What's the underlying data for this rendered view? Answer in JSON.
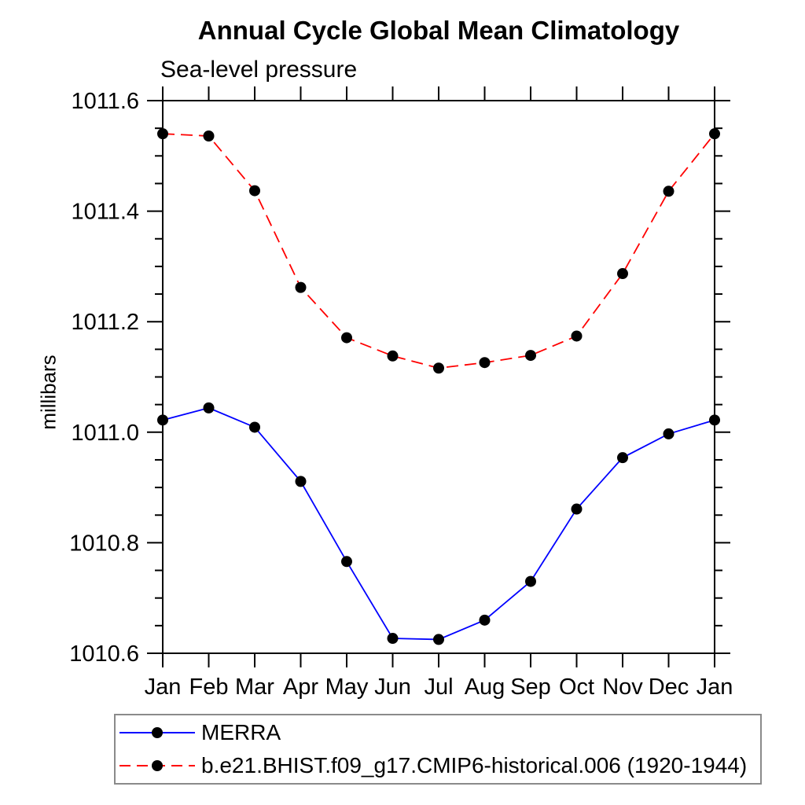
{
  "chart_data": {
    "type": "line",
    "title": "Annual Cycle Global Mean Climatology",
    "subtitle": "Sea-level pressure",
    "ylabel": "millibars",
    "categories": [
      "Jan",
      "Feb",
      "Mar",
      "Apr",
      "May",
      "Jun",
      "Jul",
      "Aug",
      "Sep",
      "Oct",
      "Nov",
      "Dec",
      "Jan"
    ],
    "ylim": [
      1010.6,
      1011.6
    ],
    "y_tick_labels": [
      "1010.6",
      "1010.8",
      "1011.0",
      "1011.2",
      "1011.4",
      "1011.6"
    ],
    "y_major_step": 0.2,
    "y_minor_step": 0.05,
    "grid": false,
    "legend_position": "bottom-left",
    "marker_color": "#000000",
    "axis_color": "#000000",
    "series": [
      {
        "name": "MERRA",
        "color": "#0000ff",
        "line_style": "solid",
        "values": [
          1011.022,
          1011.044,
          1011.009,
          1010.911,
          1010.766,
          1010.627,
          1010.625,
          1010.66,
          1010.73,
          1010.861,
          1010.954,
          1010.997,
          1011.022
        ]
      },
      {
        "name": "b.e21.BHIST.f09_g17.CMIP6-historical.006 (1920-1944)",
        "color": "#ff0000",
        "line_style": "dashed",
        "values": [
          1011.54,
          1011.536,
          1011.437,
          1011.262,
          1011.171,
          1011.138,
          1011.116,
          1011.126,
          1011.139,
          1011.174,
          1011.287,
          1011.436,
          1011.54
        ]
      }
    ]
  }
}
